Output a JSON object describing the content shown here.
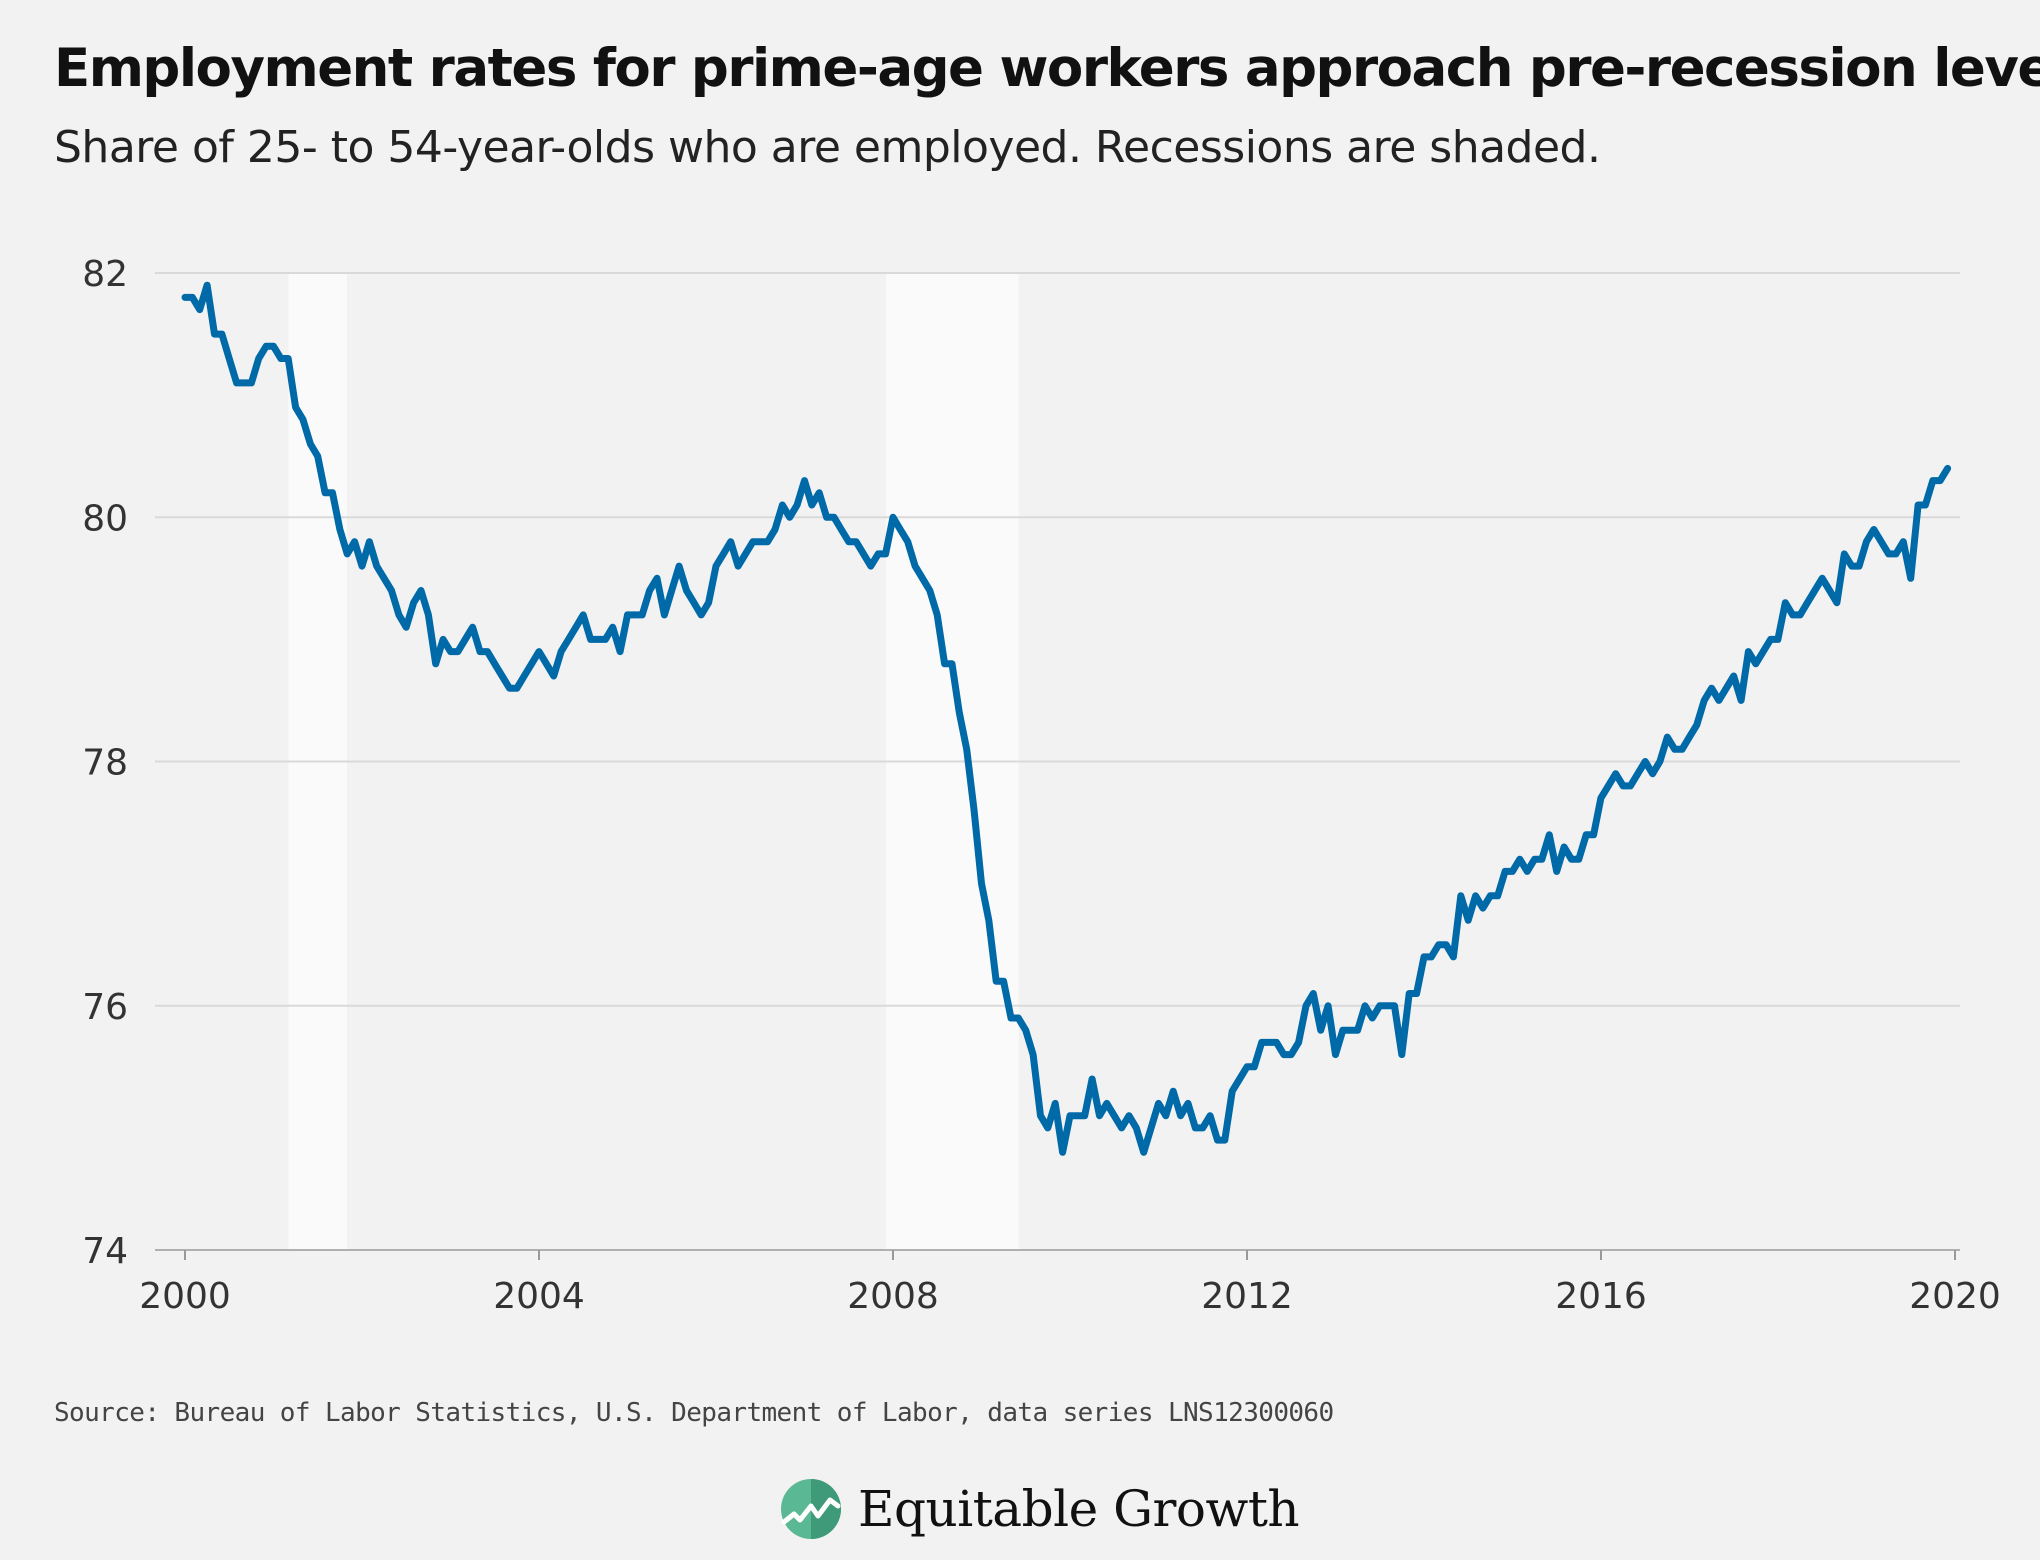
{
  "title": "Employment rates for prime-age workers approach pre-recession levels",
  "subtitle": "Share of 25- to 54-year-olds who are employed. Recessions are shaded.",
  "source": "Source: Bureau of Labor Statistics, U.S. Department of Labor, data series LNS12300060",
  "brand": {
    "name": "Equitable Growth",
    "logo_icon": "growth-logo-icon"
  },
  "colors": {
    "background": "#f2f2f2",
    "line": "#0069a8",
    "recession": "#fafafa",
    "grid": "#d9d9d9"
  },
  "chart_data": {
    "type": "line",
    "title": "Employment rates for prime-age workers approach pre-recession levels",
    "xlabel": "",
    "ylabel": "",
    "x_ticks": [
      "2000",
      "2004",
      "2008",
      "2012",
      "2016",
      "2020"
    ],
    "y_ticks": [
      "74",
      "76",
      "78",
      "80",
      "82"
    ],
    "xlim": [
      2000,
      2020
    ],
    "ylim": [
      74,
      82
    ],
    "grid": "horizontal",
    "recessions": [
      {
        "start": 2001.17,
        "end": 2001.83
      },
      {
        "start": 2007.92,
        "end": 2009.42
      }
    ],
    "series": [
      {
        "x_start": 2000.0,
        "x_step": 0.08333,
        "values": [
          81.8,
          81.8,
          81.7,
          81.9,
          81.5,
          81.5,
          81.3,
          81.1,
          81.1,
          81.1,
          81.3,
          81.4,
          81.4,
          81.3,
          81.3,
          80.9,
          80.8,
          80.6,
          80.5,
          80.2,
          80.2,
          79.9,
          79.7,
          79.8,
          79.6,
          79.8,
          79.6,
          79.5,
          79.4,
          79.2,
          79.1,
          79.3,
          79.4,
          79.2,
          78.8,
          79.0,
          78.9,
          78.9,
          79.0,
          79.1,
          78.9,
          78.9,
          78.8,
          78.7,
          78.6,
          78.6,
          78.7,
          78.8,
          78.9,
          78.8,
          78.7,
          78.9,
          79.0,
          79.1,
          79.2,
          79.0,
          79.0,
          79.0,
          79.1,
          78.9,
          79.2,
          79.2,
          79.2,
          79.4,
          79.5,
          79.2,
          79.4,
          79.6,
          79.4,
          79.3,
          79.2,
          79.3,
          79.6,
          79.7,
          79.8,
          79.6,
          79.7,
          79.8,
          79.8,
          79.8,
          79.9,
          80.1,
          80.0,
          80.1,
          80.3,
          80.1,
          80.2,
          80.0,
          80.0,
          79.9,
          79.8,
          79.8,
          79.7,
          79.6,
          79.7,
          79.7,
          80.0,
          79.9,
          79.8,
          79.6,
          79.5,
          79.4,
          79.2,
          78.8,
          78.8,
          78.4,
          78.1,
          77.6,
          77.0,
          76.7,
          76.2,
          76.2,
          75.9,
          75.9,
          75.8,
          75.6,
          75.1,
          75.0,
          75.2,
          74.8,
          75.1,
          75.1,
          75.1,
          75.4,
          75.1,
          75.2,
          75.1,
          75.0,
          75.1,
          75.0,
          74.8,
          75.0,
          75.2,
          75.1,
          75.3,
          75.1,
          75.2,
          75.0,
          75.0,
          75.1,
          74.9,
          74.9,
          75.3,
          75.4,
          75.5,
          75.5,
          75.7,
          75.7,
          75.7,
          75.6,
          75.6,
          75.7,
          76.0,
          76.1,
          75.8,
          76.0,
          75.6,
          75.8,
          75.8,
          75.8,
          76.0,
          75.9,
          76.0,
          76.0,
          76.0,
          75.6,
          76.1,
          76.1,
          76.4,
          76.4,
          76.5,
          76.5,
          76.4,
          76.9,
          76.7,
          76.9,
          76.8,
          76.9,
          76.9,
          77.1,
          77.1,
          77.2,
          77.1,
          77.2,
          77.2,
          77.4,
          77.1,
          77.3,
          77.2,
          77.2,
          77.4,
          77.4,
          77.7,
          77.8,
          77.9,
          77.8,
          77.8,
          77.9,
          78.0,
          77.9,
          78.0,
          78.2,
          78.1,
          78.1,
          78.2,
          78.3,
          78.5,
          78.6,
          78.5,
          78.6,
          78.7,
          78.5,
          78.9,
          78.8,
          78.9,
          79.0,
          79.0,
          79.3,
          79.2,
          79.2,
          79.3,
          79.4,
          79.5,
          79.4,
          79.3,
          79.7,
          79.6,
          79.6,
          79.8,
          79.9,
          79.8,
          79.7,
          79.7,
          79.8,
          79.5,
          80.1,
          80.1,
          80.3,
          80.3,
          80.4
        ]
      }
    ]
  }
}
